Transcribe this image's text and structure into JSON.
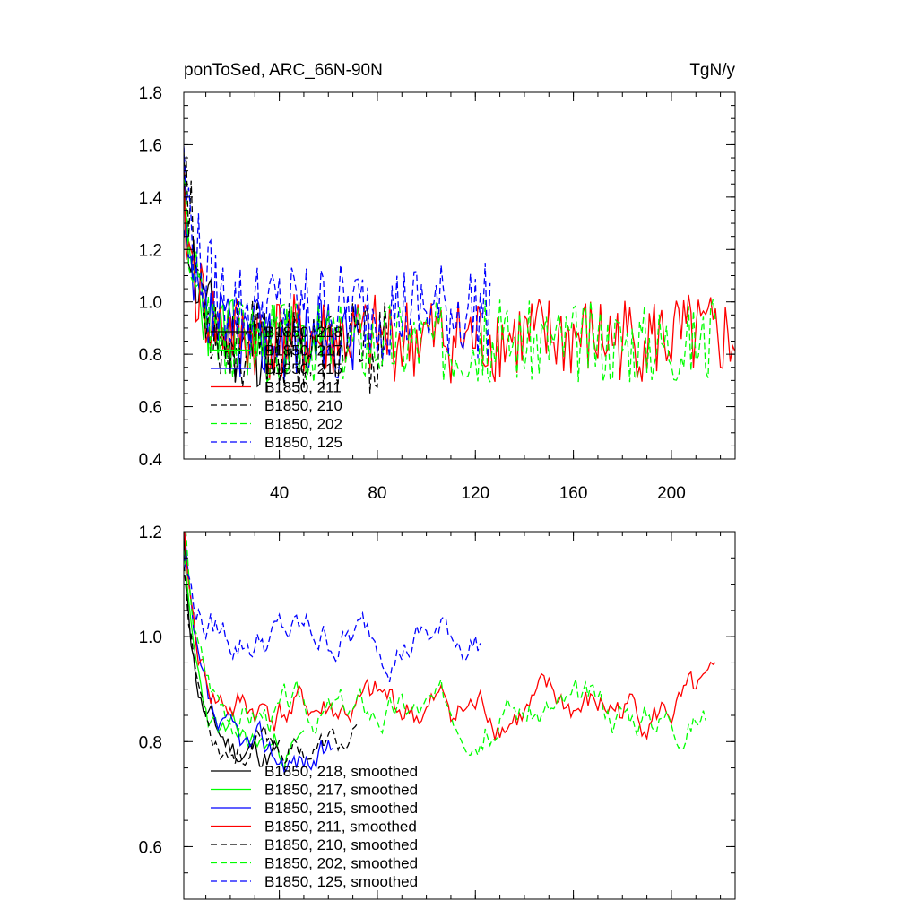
{
  "chart_data": [
    {
      "type": "line",
      "title_left": "ponToSed, ARC_66N-90N",
      "title_right": "TgN/y",
      "xlim": [
        1,
        226
      ],
      "ylim": [
        0.4,
        1.8
      ],
      "xticks": [
        40,
        80,
        120,
        160,
        200
      ],
      "xtick_labels": [
        "40",
        "80",
        "120",
        "160",
        "200"
      ],
      "yticks": [
        0.4,
        0.6,
        0.8,
        1.0,
        1.2,
        1.4,
        1.6,
        1.8
      ],
      "ytick_labels": [
        "0.4",
        "0.6",
        "0.8",
        "1.0",
        "1.2",
        "1.4",
        "1.6",
        "1.8"
      ],
      "series": [
        {
          "name": "B1850, 218",
          "color": "#000000",
          "dash": "solid",
          "length": 50,
          "start": 1.45,
          "mean": 0.83,
          "amp": 0.17,
          "seed": 11
        },
        {
          "name": "B1850, 217",
          "color": "#00ff00",
          "dash": "solid",
          "length": 60,
          "start": 1.3,
          "mean": 0.85,
          "amp": 0.15,
          "seed": 23
        },
        {
          "name": "B1850, 215",
          "color": "#0000ff",
          "dash": "solid",
          "length": 72,
          "start": 1.2,
          "mean": 0.86,
          "amp": 0.16,
          "seed": 37
        },
        {
          "name": "B1850, 211",
          "color": "#ff0000",
          "dash": "solid",
          "length": 226,
          "start": 1.35,
          "mean": 0.86,
          "amp": 0.17,
          "seed": 41
        },
        {
          "name": "B1850, 210",
          "color": "#000000",
          "dash": "dashed",
          "length": 84,
          "start": 1.6,
          "mean": 0.82,
          "amp": 0.18,
          "seed": 53
        },
        {
          "name": "B1850, 202",
          "color": "#00ff00",
          "dash": "dashed",
          "length": 218,
          "start": 1.4,
          "mean": 0.85,
          "amp": 0.16,
          "seed": 67
        },
        {
          "name": "B1850, 125",
          "color": "#0000ff",
          "dash": "dashed",
          "length": 126,
          "start": 1.5,
          "mean": 0.97,
          "amp": 0.19,
          "seed": 79
        }
      ]
    },
    {
      "type": "line",
      "xlim": [
        1,
        226
      ],
      "ylim": [
        0.5,
        1.2
      ],
      "xticks": [
        40,
        80,
        120,
        160,
        200
      ],
      "xtick_labels": [],
      "yticks": [
        0.6,
        0.8,
        1.0,
        1.2
      ],
      "ytick_labels": [
        "0.6",
        "0.8",
        "1.0",
        "1.2"
      ],
      "series": [
        {
          "name": "B1850, 218, smoothed",
          "color": "#000000",
          "dash": "solid",
          "length": 40,
          "start": 1.06,
          "mean": 0.78,
          "amp": 0.09,
          "seed": 11
        },
        {
          "name": "B1850, 217, smoothed",
          "color": "#00ff00",
          "dash": "solid",
          "length": 50,
          "start": 1.04,
          "mean": 0.79,
          "amp": 0.08,
          "seed": 23
        },
        {
          "name": "B1850, 215, smoothed",
          "color": "#0000ff",
          "dash": "solid",
          "length": 62,
          "start": 1.08,
          "mean": 0.77,
          "amp": 0.09,
          "seed": 37
        },
        {
          "name": "B1850, 211, smoothed",
          "color": "#ff0000",
          "dash": "solid",
          "length": 218,
          "start": 1.1,
          "mean": 0.86,
          "amp": 0.1,
          "seed": 41
        },
        {
          "name": "B1850, 210, smoothed",
          "color": "#000000",
          "dash": "dashed",
          "length": 72,
          "start": 1.05,
          "mean": 0.79,
          "amp": 0.08,
          "seed": 53
        },
        {
          "name": "B1850, 202, smoothed",
          "color": "#00ff00",
          "dash": "dashed",
          "length": 214,
          "start": 1.12,
          "mean": 0.86,
          "amp": 0.09,
          "seed": 67
        },
        {
          "name": "B1850, 125, smoothed",
          "color": "#0000ff",
          "dash": "dashed",
          "length": 122,
          "start": 1.1,
          "mean": 1.0,
          "amp": 0.1,
          "seed": 79
        }
      ]
    }
  ]
}
